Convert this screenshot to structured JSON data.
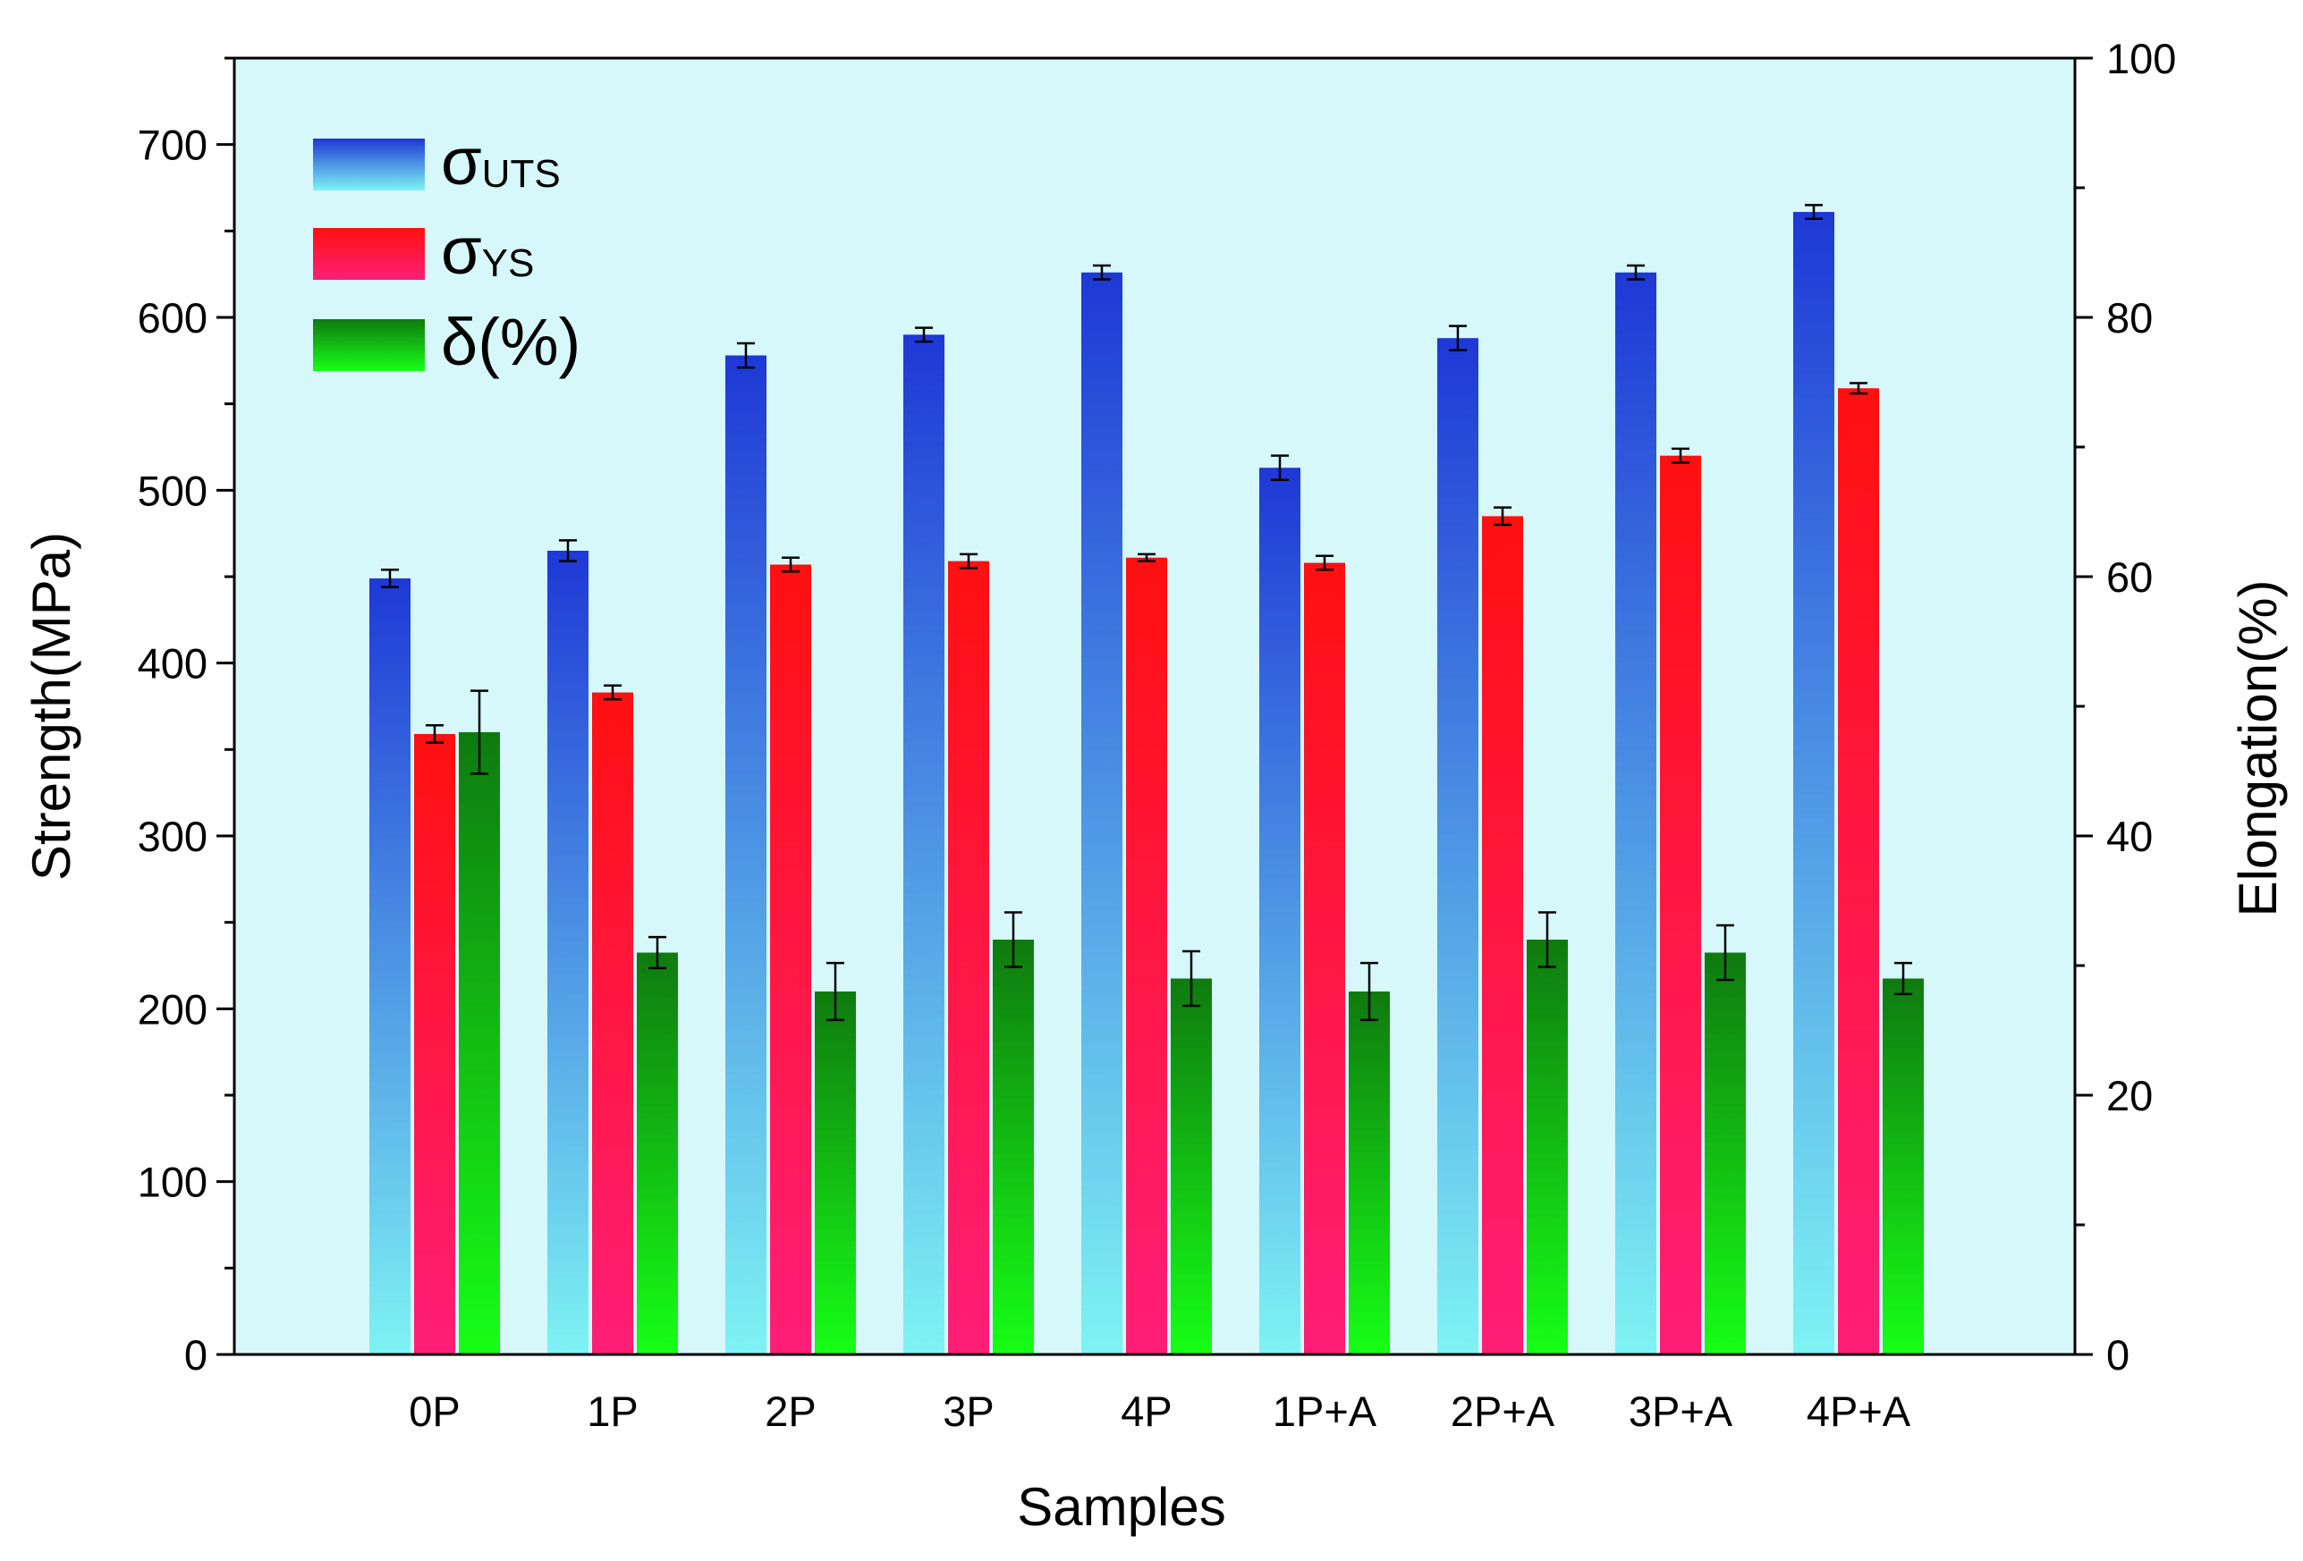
{
  "chart_data": {
    "type": "bar",
    "title": "",
    "categories": [
      "0P",
      "1P",
      "2P",
      "3P",
      "4P",
      "1P+A",
      "2P+A",
      "3P+A",
      "4P+A"
    ],
    "xlabel": "Samples",
    "ylabel": "Strength(MPa)",
    "y2label": "Elongation(%)",
    "ylim": [
      0,
      750
    ],
    "y2lim": [
      0,
      100
    ],
    "yticks": [
      "0",
      "100",
      "200",
      "300",
      "400",
      "500",
      "600",
      "700"
    ],
    "y2ticks": [
      "0",
      "20",
      "40",
      "60",
      "80",
      "100"
    ],
    "grid": false,
    "legend_position": "top-left",
    "series": [
      {
        "name": "σUTS",
        "symbol": "σ",
        "sub": "UTS",
        "axis": "left",
        "values": [
          449,
          465,
          578,
          590,
          626,
          513,
          588,
          626,
          661
        ],
        "errors": [
          5,
          6,
          7,
          4,
          4,
          7,
          7,
          4,
          4
        ],
        "color_top": "#1e38d6",
        "color_bottom": "#7ef3f3"
      },
      {
        "name": "σYS",
        "symbol": "σ",
        "sub": "YS",
        "axis": "left",
        "values": [
          359,
          383,
          457,
          459,
          461,
          458,
          485,
          520,
          559
        ],
        "errors": [
          5,
          4,
          4,
          4,
          2,
          4,
          5,
          4,
          3
        ],
        "color_top": "#ff1010",
        "color_bottom": "#ff1e78"
      },
      {
        "name": "δ(%)",
        "symbol": "δ(%)",
        "sub": "",
        "axis": "right",
        "values": [
          48,
          31,
          28,
          32,
          29,
          28,
          32,
          31,
          29
        ],
        "errors": [
          3.2,
          1.2,
          2.2,
          2.1,
          2.1,
          2.2,
          2.1,
          2.1,
          1.2
        ],
        "color_top": "#0f7a0f",
        "color_bottom": "#16ff16"
      }
    ],
    "colors": {
      "plot_background": "#d6f8fb",
      "axis": "#000000"
    }
  }
}
